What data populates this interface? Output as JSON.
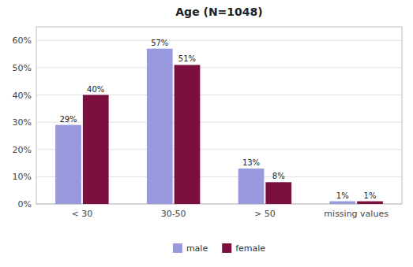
{
  "chart_data": {
    "type": "bar",
    "title": "Age (N=1048)",
    "categories": [
      "< 30",
      "30-50",
      "> 50",
      "missing values"
    ],
    "series": [
      {
        "name": "male",
        "color": "#9999dd",
        "values": [
          29,
          57,
          13,
          1
        ],
        "value_labels": [
          "29%",
          "57%",
          "13%",
          "1%"
        ]
      },
      {
        "name": "female",
        "color": "#7b1040",
        "values": [
          40,
          51,
          8,
          1
        ],
        "value_labels": [
          "40%",
          "51%",
          "8%",
          "1%"
        ]
      }
    ],
    "ylim": [
      0,
      65
    ],
    "yticks": [
      {
        "value": 0,
        "label": "0%"
      },
      {
        "value": 10,
        "label": "10%"
      },
      {
        "value": 20,
        "label": "20%"
      },
      {
        "value": 30,
        "label": "30%"
      },
      {
        "value": 40,
        "label": "40%"
      },
      {
        "value": 50,
        "label": "50%"
      },
      {
        "value": 60,
        "label": "60%"
      }
    ],
    "grid": true,
    "legend": "bottom",
    "data_labels": true
  }
}
